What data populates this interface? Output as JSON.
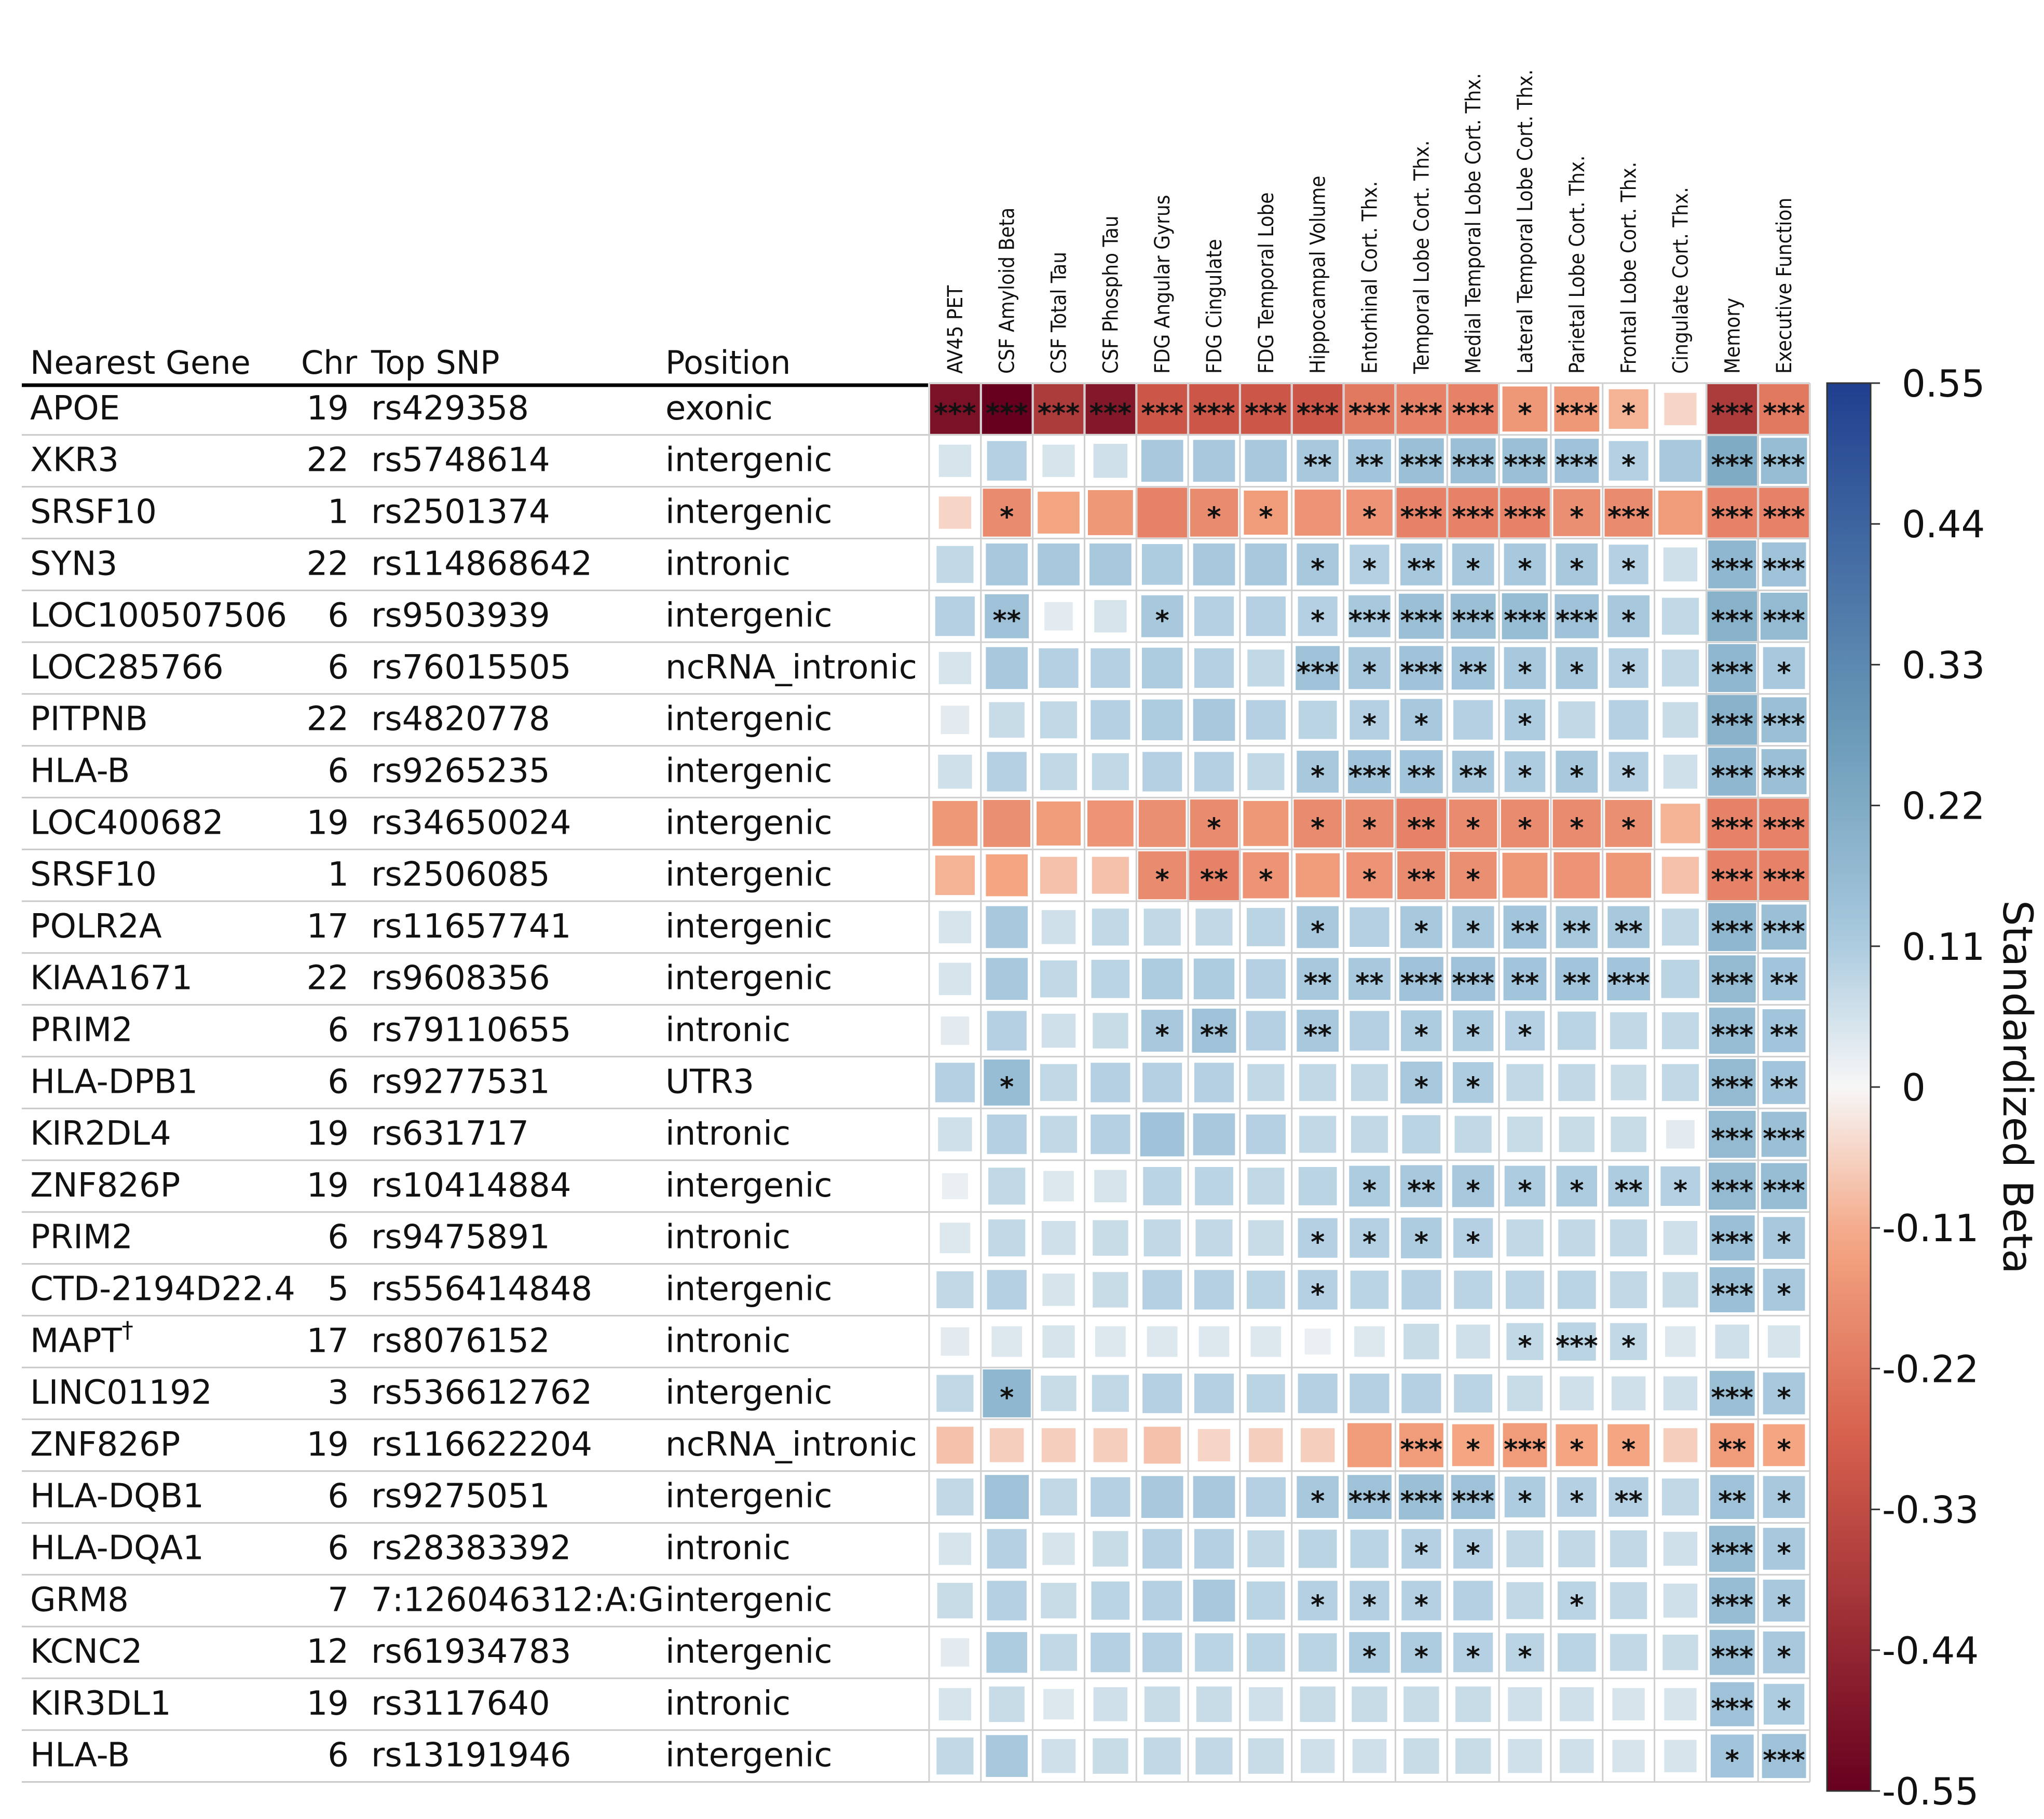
{
  "chart_data": {
    "type": "heatmap",
    "table_headers": [
      "Nearest Gene",
      "Chr",
      "Top SNP",
      "Position"
    ],
    "rows": [
      {
        "gene": "APOE",
        "chr": "19",
        "snp": "rs429358",
        "position": "exonic"
      },
      {
        "gene": "XKR3",
        "chr": "22",
        "snp": "rs5748614",
        "position": "intergenic"
      },
      {
        "gene": "SRSF10",
        "chr": "1",
        "snp": "rs2501374",
        "position": "intergenic"
      },
      {
        "gene": "SYN3",
        "chr": "22",
        "snp": "rs114868642",
        "position": "intronic"
      },
      {
        "gene": "LOC100507506",
        "chr": "6",
        "snp": "rs9503939",
        "position": "intergenic"
      },
      {
        "gene": "LOC285766",
        "chr": "6",
        "snp": "rs76015505",
        "position": "ncRNA_intronic"
      },
      {
        "gene": "PITPNB",
        "chr": "22",
        "snp": "rs4820778",
        "position": "intergenic"
      },
      {
        "gene": "HLA-B",
        "chr": "6",
        "snp": "rs9265235",
        "position": "intergenic"
      },
      {
        "gene": "LOC400682",
        "chr": "19",
        "snp": "rs34650024",
        "position": "intergenic"
      },
      {
        "gene": "SRSF10",
        "chr": "1",
        "snp": "rs2506085",
        "position": "intergenic"
      },
      {
        "gene": "POLR2A",
        "chr": "17",
        "snp": "rs11657741",
        "position": "intergenic"
      },
      {
        "gene": "KIAA1671",
        "chr": "22",
        "snp": "rs9608356",
        "position": "intergenic"
      },
      {
        "gene": "PRIM2",
        "chr": "6",
        "snp": "rs79110655",
        "position": "intronic"
      },
      {
        "gene": "HLA-DPB1",
        "chr": "6",
        "snp": "rs9277531",
        "position": "UTR3"
      },
      {
        "gene": "KIR2DL4",
        "chr": "19",
        "snp": "rs631717",
        "position": "intronic"
      },
      {
        "gene": "ZNF826P",
        "chr": "19",
        "snp": "rs10414884",
        "position": "intergenic"
      },
      {
        "gene": "PRIM2",
        "chr": "6",
        "snp": "rs9475891",
        "position": "intronic"
      },
      {
        "gene": "CTD-2194D22.4",
        "chr": "5",
        "snp": "rs556414848",
        "position": "intergenic"
      },
      {
        "gene": "MAPT†",
        "chr": "17",
        "snp": "rs8076152",
        "position": "intronic"
      },
      {
        "gene": "LINC01192",
        "chr": "3",
        "snp": "rs536612762",
        "position": "intergenic"
      },
      {
        "gene": "ZNF826P",
        "chr": "19",
        "snp": "rs116622204",
        "position": "ncRNA_intronic"
      },
      {
        "gene": "HLA-DQB1",
        "chr": "6",
        "snp": "rs9275051",
        "position": "intergenic"
      },
      {
        "gene": "HLA-DQA1",
        "chr": "6",
        "snp": "rs28383392",
        "position": "intronic"
      },
      {
        "gene": "GRM8",
        "chr": "7",
        "snp": "7:126046312:A:G",
        "position": "intergenic"
      },
      {
        "gene": "KCNC2",
        "chr": "12",
        "snp": "rs61934783",
        "position": "intergenic"
      },
      {
        "gene": "KIR3DL1",
        "chr": "19",
        "snp": "rs3117640",
        "position": "intronic"
      },
      {
        "gene": "HLA-B",
        "chr": "6",
        "snp": "rs13191946",
        "position": "intergenic"
      }
    ],
    "columns": [
      "AV45 PET",
      "CSF Amyloid Beta",
      "CSF Total Tau",
      "CSF Phospho Tau",
      "FDG Angular Gyrus",
      "FDG Cingulate",
      "FDG Temporal Lobe",
      "Hippocampal Volume",
      "Entorhinal Cort. Thx.",
      "Temporal Lobe Cort. Thx.",
      "Medial Temporal Lobe Cort. Thx.",
      "Lateral Temporal Lobe Cort. Thx.",
      "Parietal Lobe Cort. Thx.",
      "Frontal Lobe Cort. Thx.",
      "Cingulate Cort. Thx.",
      "Memory",
      "Executive Function"
    ],
    "values": [
      [
        -0.5,
        -0.55,
        -0.38,
        -0.48,
        -0.3,
        -0.3,
        -0.3,
        -0.3,
        -0.22,
        -0.2,
        -0.2,
        -0.15,
        -0.15,
        -0.1,
        -0.05,
        -0.38,
        -0.22
      ],
      [
        0.05,
        0.1,
        0.05,
        0.06,
        0.12,
        0.12,
        0.12,
        0.12,
        0.13,
        0.15,
        0.15,
        0.15,
        0.14,
        0.1,
        0.12,
        0.22,
        0.16
      ],
      [
        -0.05,
        -0.18,
        -0.12,
        -0.15,
        -0.2,
        -0.18,
        -0.14,
        -0.16,
        -0.16,
        -0.2,
        -0.2,
        -0.2,
        -0.17,
        -0.18,
        -0.14,
        -0.2,
        -0.2
      ],
      [
        0.08,
        0.12,
        0.12,
        0.12,
        0.11,
        0.12,
        0.12,
        0.12,
        0.1,
        0.12,
        0.12,
        0.12,
        0.12,
        0.1,
        0.06,
        0.18,
        0.14
      ],
      [
        0.1,
        0.14,
        0.03,
        0.05,
        0.12,
        0.1,
        0.1,
        0.1,
        0.12,
        0.15,
        0.15,
        0.16,
        0.14,
        0.12,
        0.08,
        0.2,
        0.17
      ],
      [
        0.05,
        0.12,
        0.1,
        0.1,
        0.11,
        0.1,
        0.08,
        0.14,
        0.12,
        0.14,
        0.13,
        0.12,
        0.12,
        0.1,
        0.08,
        0.18,
        0.12
      ],
      [
        0.03,
        0.07,
        0.08,
        0.1,
        0.11,
        0.12,
        0.1,
        0.09,
        0.1,
        0.12,
        0.1,
        0.11,
        0.08,
        0.1,
        0.07,
        0.2,
        0.15
      ],
      [
        0.06,
        0.1,
        0.08,
        0.08,
        0.1,
        0.1,
        0.08,
        0.12,
        0.13,
        0.13,
        0.12,
        0.11,
        0.12,
        0.1,
        0.06,
        0.18,
        0.15
      ],
      [
        -0.15,
        -0.17,
        -0.14,
        -0.16,
        -0.17,
        -0.18,
        -0.15,
        -0.18,
        -0.18,
        -0.2,
        -0.18,
        -0.18,
        -0.18,
        -0.17,
        -0.1,
        -0.2,
        -0.2
      ],
      [
        -0.1,
        -0.12,
        -0.08,
        -0.08,
        -0.18,
        -0.2,
        -0.16,
        -0.14,
        -0.16,
        -0.18,
        -0.17,
        -0.15,
        -0.16,
        -0.15,
        -0.08,
        -0.2,
        -0.2
      ],
      [
        0.05,
        0.12,
        0.06,
        0.08,
        0.08,
        0.08,
        0.09,
        0.12,
        0.1,
        0.12,
        0.12,
        0.13,
        0.12,
        0.12,
        0.08,
        0.18,
        0.15
      ],
      [
        0.05,
        0.12,
        0.08,
        0.09,
        0.11,
        0.11,
        0.1,
        0.12,
        0.12,
        0.14,
        0.14,
        0.13,
        0.13,
        0.13,
        0.09,
        0.17,
        0.13
      ],
      [
        0.03,
        0.1,
        0.06,
        0.07,
        0.12,
        0.14,
        0.1,
        0.12,
        0.1,
        0.11,
        0.11,
        0.1,
        0.09,
        0.08,
        0.08,
        0.16,
        0.13
      ],
      [
        0.1,
        0.16,
        0.08,
        0.1,
        0.1,
        0.1,
        0.08,
        0.08,
        0.08,
        0.12,
        0.11,
        0.08,
        0.08,
        0.07,
        0.08,
        0.17,
        0.13
      ],
      [
        0.06,
        0.1,
        0.08,
        0.1,
        0.14,
        0.12,
        0.1,
        0.08,
        0.08,
        0.09,
        0.08,
        0.07,
        0.07,
        0.07,
        0.03,
        0.17,
        0.15
      ],
      [
        0.02,
        0.08,
        0.04,
        0.05,
        0.09,
        0.09,
        0.08,
        0.09,
        0.11,
        0.12,
        0.12,
        0.11,
        0.11,
        0.11,
        0.1,
        0.17,
        0.16
      ],
      [
        0.04,
        0.08,
        0.06,
        0.07,
        0.08,
        0.08,
        0.07,
        0.1,
        0.1,
        0.11,
        0.1,
        0.08,
        0.08,
        0.08,
        0.06,
        0.15,
        0.12
      ],
      [
        0.08,
        0.1,
        0.05,
        0.07,
        0.1,
        0.1,
        0.09,
        0.1,
        0.09,
        0.1,
        0.09,
        0.09,
        0.09,
        0.08,
        0.07,
        0.15,
        0.12
      ],
      [
        0.03,
        0.04,
        0.05,
        0.04,
        0.04,
        0.04,
        0.04,
        0.02,
        0.04,
        0.07,
        0.06,
        0.08,
        0.09,
        0.08,
        0.04,
        0.06,
        0.05
      ],
      [
        0.08,
        0.18,
        0.07,
        0.08,
        0.1,
        0.1,
        0.09,
        0.1,
        0.1,
        0.1,
        0.09,
        0.07,
        0.06,
        0.06,
        0.06,
        0.15,
        0.12
      ],
      [
        -0.08,
        -0.06,
        -0.06,
        -0.06,
        -0.08,
        -0.05,
        -0.06,
        -0.06,
        -0.14,
        -0.14,
        -0.12,
        -0.14,
        -0.12,
        -0.12,
        -0.06,
        -0.14,
        -0.12
      ],
      [
        0.08,
        0.14,
        0.08,
        0.1,
        0.12,
        0.12,
        0.1,
        0.12,
        0.14,
        0.15,
        0.14,
        0.11,
        0.1,
        0.1,
        0.08,
        0.14,
        0.12
      ],
      [
        0.05,
        0.1,
        0.05,
        0.07,
        0.1,
        0.1,
        0.08,
        0.09,
        0.09,
        0.1,
        0.1,
        0.08,
        0.08,
        0.08,
        0.06,
        0.16,
        0.12
      ],
      [
        0.07,
        0.1,
        0.07,
        0.09,
        0.1,
        0.12,
        0.09,
        0.1,
        0.1,
        0.1,
        0.1,
        0.08,
        0.09,
        0.08,
        0.06,
        0.16,
        0.12
      ],
      [
        0.03,
        0.11,
        0.08,
        0.1,
        0.1,
        0.09,
        0.09,
        0.09,
        0.11,
        0.11,
        0.1,
        0.09,
        0.09,
        0.08,
        0.07,
        0.15,
        0.12
      ],
      [
        0.05,
        0.07,
        0.04,
        0.06,
        0.07,
        0.07,
        0.06,
        0.07,
        0.07,
        0.07,
        0.07,
        0.06,
        0.06,
        0.05,
        0.05,
        0.14,
        0.11
      ],
      [
        0.08,
        0.12,
        0.06,
        0.07,
        0.08,
        0.08,
        0.07,
        0.06,
        0.06,
        0.07,
        0.07,
        0.06,
        0.06,
        0.05,
        0.05,
        0.13,
        0.14
      ]
    ],
    "significance": [
      [
        "***",
        "***",
        "***",
        "***",
        "***",
        "***",
        "***",
        "***",
        "***",
        "***",
        "***",
        "*",
        "***",
        "*",
        "",
        "***",
        "***"
      ],
      [
        "",
        "",
        "",
        "",
        "",
        "",
        "",
        "**",
        "**",
        "***",
        "***",
        "***",
        "***",
        "*",
        "",
        "***",
        "***"
      ],
      [
        "",
        "*",
        "",
        "",
        "",
        "*",
        "*",
        "",
        "*",
        "***",
        "***",
        "***",
        "*",
        "***",
        "",
        "***",
        "***"
      ],
      [
        "",
        "",
        "",
        "",
        "",
        "",
        "",
        "*",
        "*",
        "**",
        "*",
        "*",
        "*",
        "*",
        "",
        "***",
        "***"
      ],
      [
        "",
        "**",
        "",
        "",
        "*",
        "",
        "",
        "*",
        "***",
        "***",
        "***",
        "***",
        "***",
        "*",
        "",
        "***",
        "***"
      ],
      [
        "",
        "",
        "",
        "",
        "",
        "",
        "",
        "***",
        "*",
        "***",
        "**",
        "*",
        "*",
        "*",
        "",
        "***",
        "*"
      ],
      [
        "",
        "",
        "",
        "",
        "",
        "",
        "",
        "",
        "*",
        "*",
        "",
        "*",
        "",
        "",
        "",
        "***",
        "***"
      ],
      [
        "",
        "",
        "",
        "",
        "",
        "",
        "",
        "*",
        "***",
        "**",
        "**",
        "*",
        "*",
        "*",
        "",
        "***",
        "***"
      ],
      [
        "",
        "",
        "",
        "",
        "",
        "*",
        "",
        "*",
        "*",
        "**",
        "*",
        "*",
        "*",
        "*",
        "",
        "***",
        "***"
      ],
      [
        "",
        "",
        "",
        "",
        "*",
        "**",
        "*",
        "",
        "*",
        "**",
        "*",
        "",
        "",
        "",
        "",
        "***",
        "***"
      ],
      [
        "",
        "",
        "",
        "",
        "",
        "",
        "",
        "*",
        "",
        "*",
        "*",
        "**",
        "**",
        "**",
        "",
        "***",
        "***"
      ],
      [
        "",
        "",
        "",
        "",
        "",
        "",
        "",
        "**",
        "**",
        "***",
        "***",
        "**",
        "**",
        "***",
        "",
        "***",
        "**"
      ],
      [
        "",
        "",
        "",
        "",
        "*",
        "**",
        "",
        "**",
        "",
        "*",
        "*",
        "*",
        "",
        "",
        "",
        "***",
        "**"
      ],
      [
        "",
        "*",
        "",
        "",
        "",
        "",
        "",
        "",
        "",
        "*",
        "*",
        "",
        "",
        "",
        "",
        "***",
        "**"
      ],
      [
        "",
        "",
        "",
        "",
        "",
        "",
        "",
        "",
        "",
        "",
        "",
        "",
        "",
        "",
        "",
        "***",
        "***"
      ],
      [
        "",
        "",
        "",
        "",
        "",
        "",
        "",
        "",
        "*",
        "**",
        "*",
        "*",
        "*",
        "**",
        "*",
        "***",
        "***"
      ],
      [
        "",
        "",
        "",
        "",
        "",
        "",
        "",
        "*",
        "*",
        "*",
        "*",
        "",
        "",
        "",
        "",
        "***",
        "*"
      ],
      [
        "",
        "",
        "",
        "",
        "",
        "",
        "",
        "*",
        "",
        "",
        "",
        "",
        "",
        "",
        "",
        "***",
        "*"
      ],
      [
        "",
        "",
        "",
        "",
        "",
        "",
        "",
        "",
        "",
        "",
        "",
        "*",
        "***",
        "*",
        "",
        "",
        ""
      ],
      [
        "",
        "*",
        "",
        "",
        "",
        "",
        "",
        "",
        "",
        "",
        "",
        "",
        "",
        "",
        "",
        "***",
        "*"
      ],
      [
        "",
        "",
        "",
        "",
        "",
        "",
        "",
        "",
        "",
        "***",
        "*",
        "***",
        "*",
        "*",
        "",
        "**",
        "*"
      ],
      [
        "",
        "",
        "",
        "",
        "",
        "",
        "",
        "*",
        "***",
        "***",
        "***",
        "*",
        "*",
        "**",
        "",
        "**",
        "*"
      ],
      [
        "",
        "",
        "",
        "",
        "",
        "",
        "",
        "",
        "",
        "*",
        "*",
        "",
        "",
        "",
        "",
        "***",
        "*"
      ],
      [
        "",
        "",
        "",
        "",
        "",
        "",
        "",
        "*",
        "*",
        "*",
        "",
        "",
        "*",
        "",
        "",
        "***",
        "*"
      ],
      [
        "",
        "",
        "",
        "",
        "",
        "",
        "",
        "",
        "*",
        "*",
        "*",
        "*",
        "",
        "",
        "",
        "***",
        "*"
      ],
      [
        "",
        "",
        "",
        "",
        "",
        "",
        "",
        "",
        "",
        "",
        "",
        "",
        "",
        "",
        "",
        "***",
        "*"
      ],
      [
        "",
        "",
        "",
        "",
        "",
        "",
        "",
        "",
        "",
        "",
        "",
        "",
        "",
        "",
        "",
        "*",
        "***"
      ]
    ],
    "colorbar": {
      "title": "Standardized Beta",
      "range": [
        -0.55,
        0.55
      ],
      "ticks": [
        "0.55",
        "0.44",
        "0.33",
        "0.22",
        "0.11",
        "0",
        "-0.11",
        "-0.22",
        "-0.33",
        "-0.44",
        "-0.55"
      ],
      "colors": {
        "min": "#67001f",
        "neg_mid": "#d6604d",
        "neg_light": "#f4a582",
        "zero": "#f7f7f7",
        "pos_light": "#a6c8dd",
        "pos_mid": "#6b9bb8",
        "max": "#1f3f8f"
      }
    }
  }
}
